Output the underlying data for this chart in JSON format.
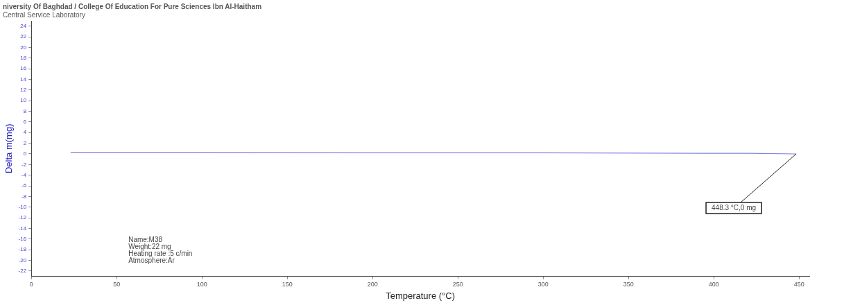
{
  "chart_data": {
    "type": "line",
    "title": "niversity Of Baghdad / College Of Education For Pure Sciences Ibn Al-Haitham",
    "subtitle": "Central Service Laboratory",
    "xlabel": "Temperature (°C)",
    "ylabel": "Delta m(mg)",
    "x": [
      23,
      100,
      200,
      300,
      400,
      420,
      448.3
    ],
    "series": [
      {
        "color": "#8080e0",
        "values": [
          0.3,
          0.3,
          0.2,
          0.2,
          0.1,
          0.1,
          0
        ]
      }
    ],
    "xlim": [
      0,
      456
    ],
    "xticks": [
      0,
      50,
      100,
      150,
      200,
      250,
      300,
      350,
      400,
      450
    ],
    "ylim": [
      -23,
      25
    ],
    "yticks": [
      -22,
      -20,
      -18,
      -16,
      -14,
      -12,
      -10,
      -8,
      -6,
      -4,
      -2,
      0,
      2,
      4,
      6,
      8,
      10,
      12,
      14,
      16,
      18,
      20,
      22,
      24
    ],
    "annotations": [
      {
        "text": "448.3 °C,0 mg",
        "x": 448.3,
        "y": 0
      },
      "Name:M38",
      "Weight:22 mg",
      "Heating rate :5 c/min",
      "Atmosphere:Ar"
    ],
    "grid": false,
    "legend": false,
    "marker": "none",
    "line_style": "solid"
  }
}
